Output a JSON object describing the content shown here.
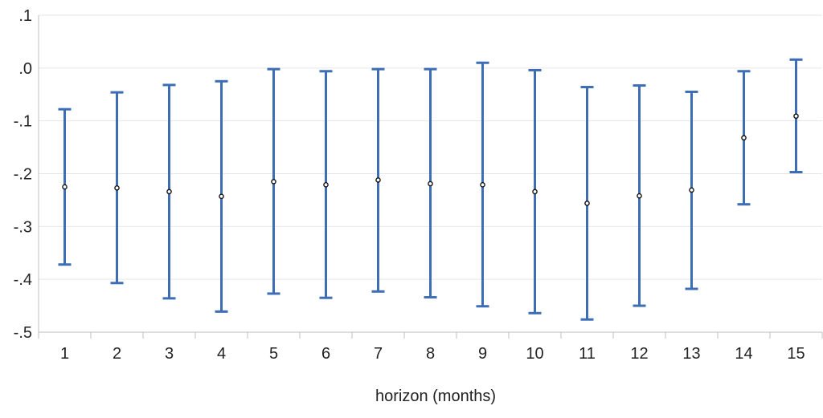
{
  "chart_data": {
    "type": "scatter",
    "subtype": "point-with-error-bars",
    "title": "",
    "xlabel": "horizon (months)",
    "ylabel": "",
    "categories": [
      "1",
      "2",
      "3",
      "4",
      "5",
      "6",
      "7",
      "8",
      "9",
      "10",
      "11",
      "12",
      "13",
      "14",
      "15"
    ],
    "y_tick_labels": [
      ".1",
      ".0",
      "-.1",
      "-.2",
      "-.3",
      "-.4",
      "-.5"
    ],
    "y_ticks": [
      0.1,
      0.0,
      -0.1,
      -0.2,
      -0.3,
      -0.4,
      -0.5
    ],
    "ylim": [
      -0.5,
      0.1
    ],
    "grid": true,
    "legend": "none",
    "series": [
      {
        "point": [
          -0.225,
          -0.227,
          -0.234,
          -0.243,
          -0.215,
          -0.221,
          -0.212,
          -0.219,
          -0.221,
          -0.234,
          -0.256,
          -0.242,
          -0.231,
          -0.132,
          -0.091
        ],
        "upper": [
          -0.078,
          -0.046,
          -0.032,
          -0.025,
          -0.002,
          -0.006,
          -0.002,
          -0.002,
          0.01,
          -0.004,
          -0.036,
          -0.033,
          -0.045,
          -0.006,
          0.016
        ],
        "lower": [
          -0.372,
          -0.407,
          -0.436,
          -0.461,
          -0.427,
          -0.435,
          -0.423,
          -0.434,
          -0.451,
          -0.464,
          -0.476,
          -0.45,
          -0.418,
          -0.258,
          -0.197
        ]
      }
    ],
    "colors": {
      "error_bar": "#3d6db5",
      "point_stroke": "#111111",
      "point_fill": "#ffffff",
      "grid": "#e6e6e6",
      "axis": "#bfbfbf"
    }
  }
}
